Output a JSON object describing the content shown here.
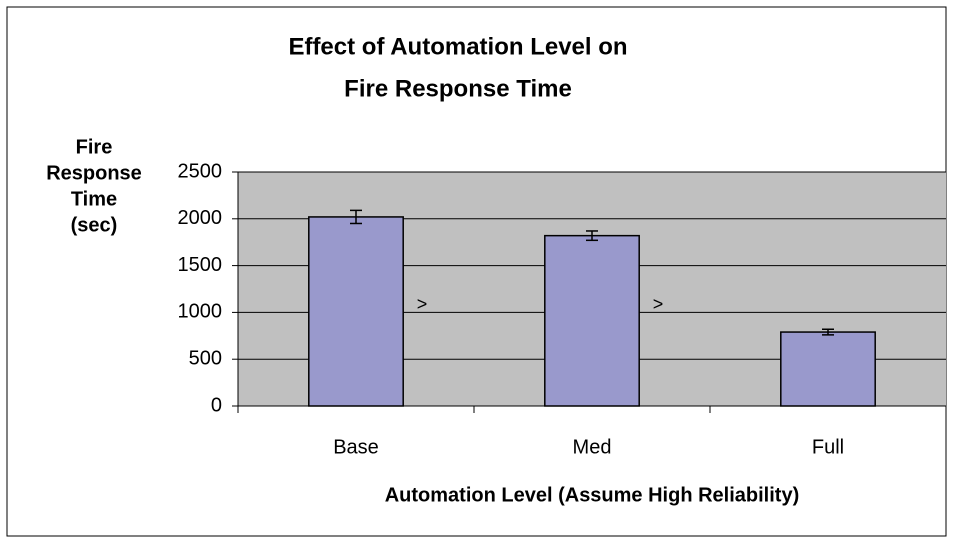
{
  "chart_data": {
    "type": "bar",
    "title": [
      "Effect of Automation Level on",
      "Fire Response Time"
    ],
    "y_label": [
      "Fire",
      "Response",
      "Time",
      "(sec)"
    ],
    "x_label": "Automation Level (Assume High Reliability)",
    "categories": [
      "Base",
      "Med",
      "Full"
    ],
    "values": [
      2020,
      1820,
      790
    ],
    "errors": [
      70,
      50,
      30
    ],
    "color": "#9999cc",
    "ylim": [
      0,
      2500
    ],
    "yticks": [
      0,
      500,
      1000,
      1500,
      2000,
      2500
    ],
    "grid": true,
    "annotations": [
      ">",
      ">"
    ]
  }
}
